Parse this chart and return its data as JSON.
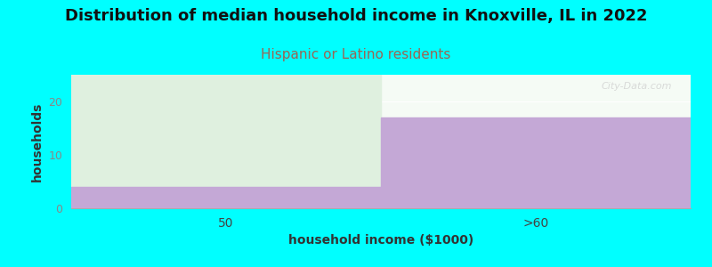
{
  "title": "Distribution of median household income in Knoxville, IL in 2022",
  "subtitle": "Hispanic or Latino residents",
  "xlabel": "household income ($1000)",
  "ylabel": "households",
  "categories": [
    "50",
    ">60"
  ],
  "bar_values": [
    4,
    17
  ],
  "bar_color": "#c4a8d6",
  "bar_green_color": "#dff0df",
  "plot_bg_top_color": "#f0f8f0",
  "plot_bg_bot_color": "#ffffff",
  "bg_color": "#00ffff",
  "ylim": [
    0,
    25
  ],
  "yticks": [
    0,
    10,
    20
  ],
  "title_fontsize": 13,
  "subtitle_fontsize": 11,
  "subtitle_color": "#996655",
  "axis_label_fontsize": 10,
  "watermark": "City-Data.com"
}
